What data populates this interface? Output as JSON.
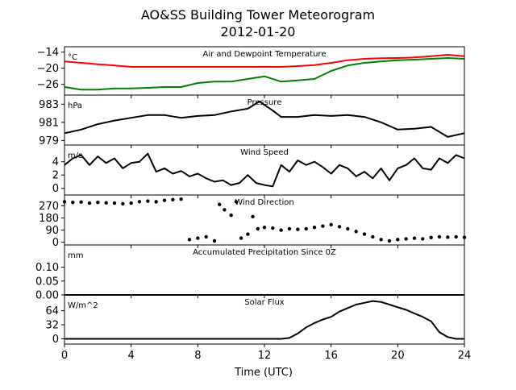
{
  "figure": {
    "title_line1": "AO&SS Building Tower Meteorogram",
    "title_line2": "2012-01-20",
    "xlabel": "Time (UTC)"
  },
  "chart_data": [
    {
      "type": "line",
      "title": "Air and Dewpoint Temperature",
      "unit": "°C",
      "ylim": [
        -30,
        -12
      ],
      "yticks": [
        -14,
        -20,
        -26
      ],
      "ytick_labels": [
        "−14",
        "−20",
        "−26"
      ],
      "grid": false,
      "x": [
        0,
        1,
        2,
        3,
        4,
        5,
        6,
        7,
        8,
        9,
        10,
        11,
        12,
        13,
        14,
        15,
        16,
        17,
        18,
        19,
        20,
        21,
        22,
        23,
        24
      ],
      "series": [
        {
          "color": "#ff0000",
          "values": [
            -17.5,
            -18,
            -18.5,
            -19,
            -19.5,
            -19.5,
            -19.5,
            -19.5,
            -19.5,
            -19.5,
            -19.5,
            -19.5,
            -19.5,
            -19.5,
            -19.2,
            -18.8,
            -18,
            -17,
            -16.5,
            -16.3,
            -16.2,
            -16,
            -15.5,
            -15,
            -15.5
          ]
        },
        {
          "color": "#008000",
          "values": [
            -27,
            -28,
            -28,
            -27.5,
            -27.5,
            -27.3,
            -27,
            -27,
            -25.5,
            -25,
            -25,
            -24,
            -23,
            -25,
            -24.5,
            -24,
            -21,
            -19,
            -18,
            -17.5,
            -17,
            -16.8,
            -16.5,
            -16.2,
            -16.5
          ]
        }
      ]
    },
    {
      "type": "line",
      "title": "Pressure",
      "unit": "hPa",
      "ylim": [
        978.5,
        984
      ],
      "yticks": [
        983,
        981,
        979
      ],
      "ytick_labels": [
        "983",
        "981",
        "979"
      ],
      "grid": false,
      "x": [
        0,
        1,
        2,
        3,
        4,
        5,
        6,
        7,
        8,
        9,
        10,
        11,
        11.7,
        12.5,
        13,
        14,
        15,
        16,
        17,
        18,
        19,
        20,
        21,
        22,
        23,
        24
      ],
      "series": [
        {
          "color": "#000000",
          "values": [
            979.8,
            980.2,
            980.8,
            981.2,
            981.5,
            981.8,
            981.8,
            981.5,
            981.7,
            981.8,
            982.2,
            982.5,
            983.3,
            982.3,
            981.6,
            981.6,
            981.8,
            981.7,
            981.8,
            981.6,
            981,
            980.2,
            980.3,
            980.5,
            979.4,
            979.8
          ]
        }
      ]
    },
    {
      "type": "line",
      "title": "Wind Speed",
      "unit": "m/s",
      "ylim": [
        -1,
        6.5
      ],
      "yticks": [
        4,
        2,
        0
      ],
      "ytick_labels": [
        "4",
        "2",
        "0"
      ],
      "grid": false,
      "x": [
        0,
        0.5,
        1,
        1.5,
        2,
        2.5,
        3,
        3.5,
        4,
        4.5,
        5,
        5.5,
        6,
        6.5,
        7,
        7.5,
        8,
        8.5,
        9,
        9.5,
        10,
        10.5,
        11,
        11.5,
        12,
        12.5,
        13,
        13.5,
        14,
        14.5,
        15,
        15.5,
        16,
        16.5,
        17,
        17.5,
        18,
        18.5,
        19,
        19.5,
        20,
        20.5,
        21,
        21.5,
        22,
        22.5,
        23,
        23.5,
        24
      ],
      "series": [
        {
          "color": "#000000",
          "values": [
            3.5,
            4.5,
            5,
            3.5,
            4.8,
            3.8,
            4.5,
            3,
            3.8,
            4,
            5.2,
            2.5,
            3,
            2.2,
            2.6,
            1.8,
            2.2,
            1.5,
            1,
            1.2,
            0.5,
            0.8,
            2,
            0.8,
            0.5,
            0.3,
            3.5,
            2.5,
            4.2,
            3.5,
            4,
            3.2,
            2.2,
            3.5,
            3,
            1.8,
            2.5,
            1.5,
            3,
            1.2,
            3,
            3.5,
            4.5,
            3,
            2.8,
            4.5,
            3.8,
            5,
            4.5
          ]
        }
      ]
    },
    {
      "type": "scatter",
      "title": "Wind Direction",
      "ylim": [
        -20,
        350
      ],
      "yticks": [
        270,
        180,
        90,
        0
      ],
      "ytick_labels": [
        "270",
        "180",
        "90",
        "0"
      ],
      "grid": false,
      "x": [
        0,
        0.5,
        1,
        1.5,
        2,
        2.5,
        3,
        3.5,
        4,
        4.5,
        5,
        5.5,
        6,
        6.5,
        7,
        7.5,
        8,
        8.5,
        9,
        9.3,
        9.6,
        10,
        10.3,
        10.6,
        11,
        11.3,
        11.6,
        12,
        12.5,
        13,
        13.5,
        14,
        14.5,
        15,
        15.5,
        16,
        16.5,
        17,
        17.5,
        18,
        18.5,
        19,
        19.5,
        20,
        20.5,
        21,
        21.5,
        22,
        22.5,
        23,
        23.5,
        24
      ],
      "series": [
        {
          "color": "#000000",
          "values": [
            300,
            295,
            298,
            290,
            295,
            292,
            290,
            285,
            290,
            300,
            305,
            300,
            310,
            315,
            320,
            20,
            30,
            40,
            10,
            280,
            240,
            200,
            300,
            30,
            60,
            190,
            100,
            110,
            105,
            90,
            100,
            95,
            100,
            110,
            120,
            130,
            115,
            100,
            80,
            60,
            40,
            20,
            10,
            20,
            25,
            30,
            25,
            35,
            40,
            38,
            40,
            36
          ]
        }
      ]
    },
    {
      "type": "line",
      "title": "Accumulated Precipitation Since 0Z",
      "unit": "mm",
      "ylim": [
        0,
        0.18
      ],
      "yticks": [
        0.1,
        0.05,
        0.0
      ],
      "ytick_labels": [
        "0.10",
        "0.05",
        "0.00"
      ],
      "grid": false,
      "x": [
        0,
        24
      ],
      "series": [
        {
          "color": "#000000",
          "values": [
            0,
            0
          ]
        }
      ]
    },
    {
      "type": "line",
      "title": "Solar Flux",
      "unit": "W/m^2",
      "ylim": [
        -12,
        100
      ],
      "yticks": [
        64,
        32,
        0
      ],
      "ytick_labels": [
        "64",
        "32",
        "0"
      ],
      "grid": false,
      "x": [
        0,
        2,
        4,
        6,
        8,
        10,
        12,
        13,
        13.5,
        14,
        14.5,
        15,
        15.5,
        16,
        16.5,
        17,
        17.5,
        18,
        18.5,
        19,
        19.5,
        20,
        20.5,
        21,
        21.5,
        22,
        22.5,
        23,
        23.5,
        24
      ],
      "series": [
        {
          "color": "#000000",
          "values": [
            0,
            0,
            0,
            0,
            0,
            0,
            0,
            0,
            2,
            12,
            26,
            36,
            44,
            50,
            62,
            70,
            78,
            82,
            86,
            84,
            78,
            72,
            66,
            58,
            50,
            40,
            15,
            4,
            0,
            0
          ]
        }
      ]
    }
  ],
  "xaxis": {
    "xlim": [
      0,
      24
    ],
    "ticks": [
      0,
      4,
      8,
      12,
      16,
      20,
      24
    ],
    "tick_labels": [
      "0",
      "4",
      "8",
      "12",
      "16",
      "20",
      "24"
    ]
  }
}
